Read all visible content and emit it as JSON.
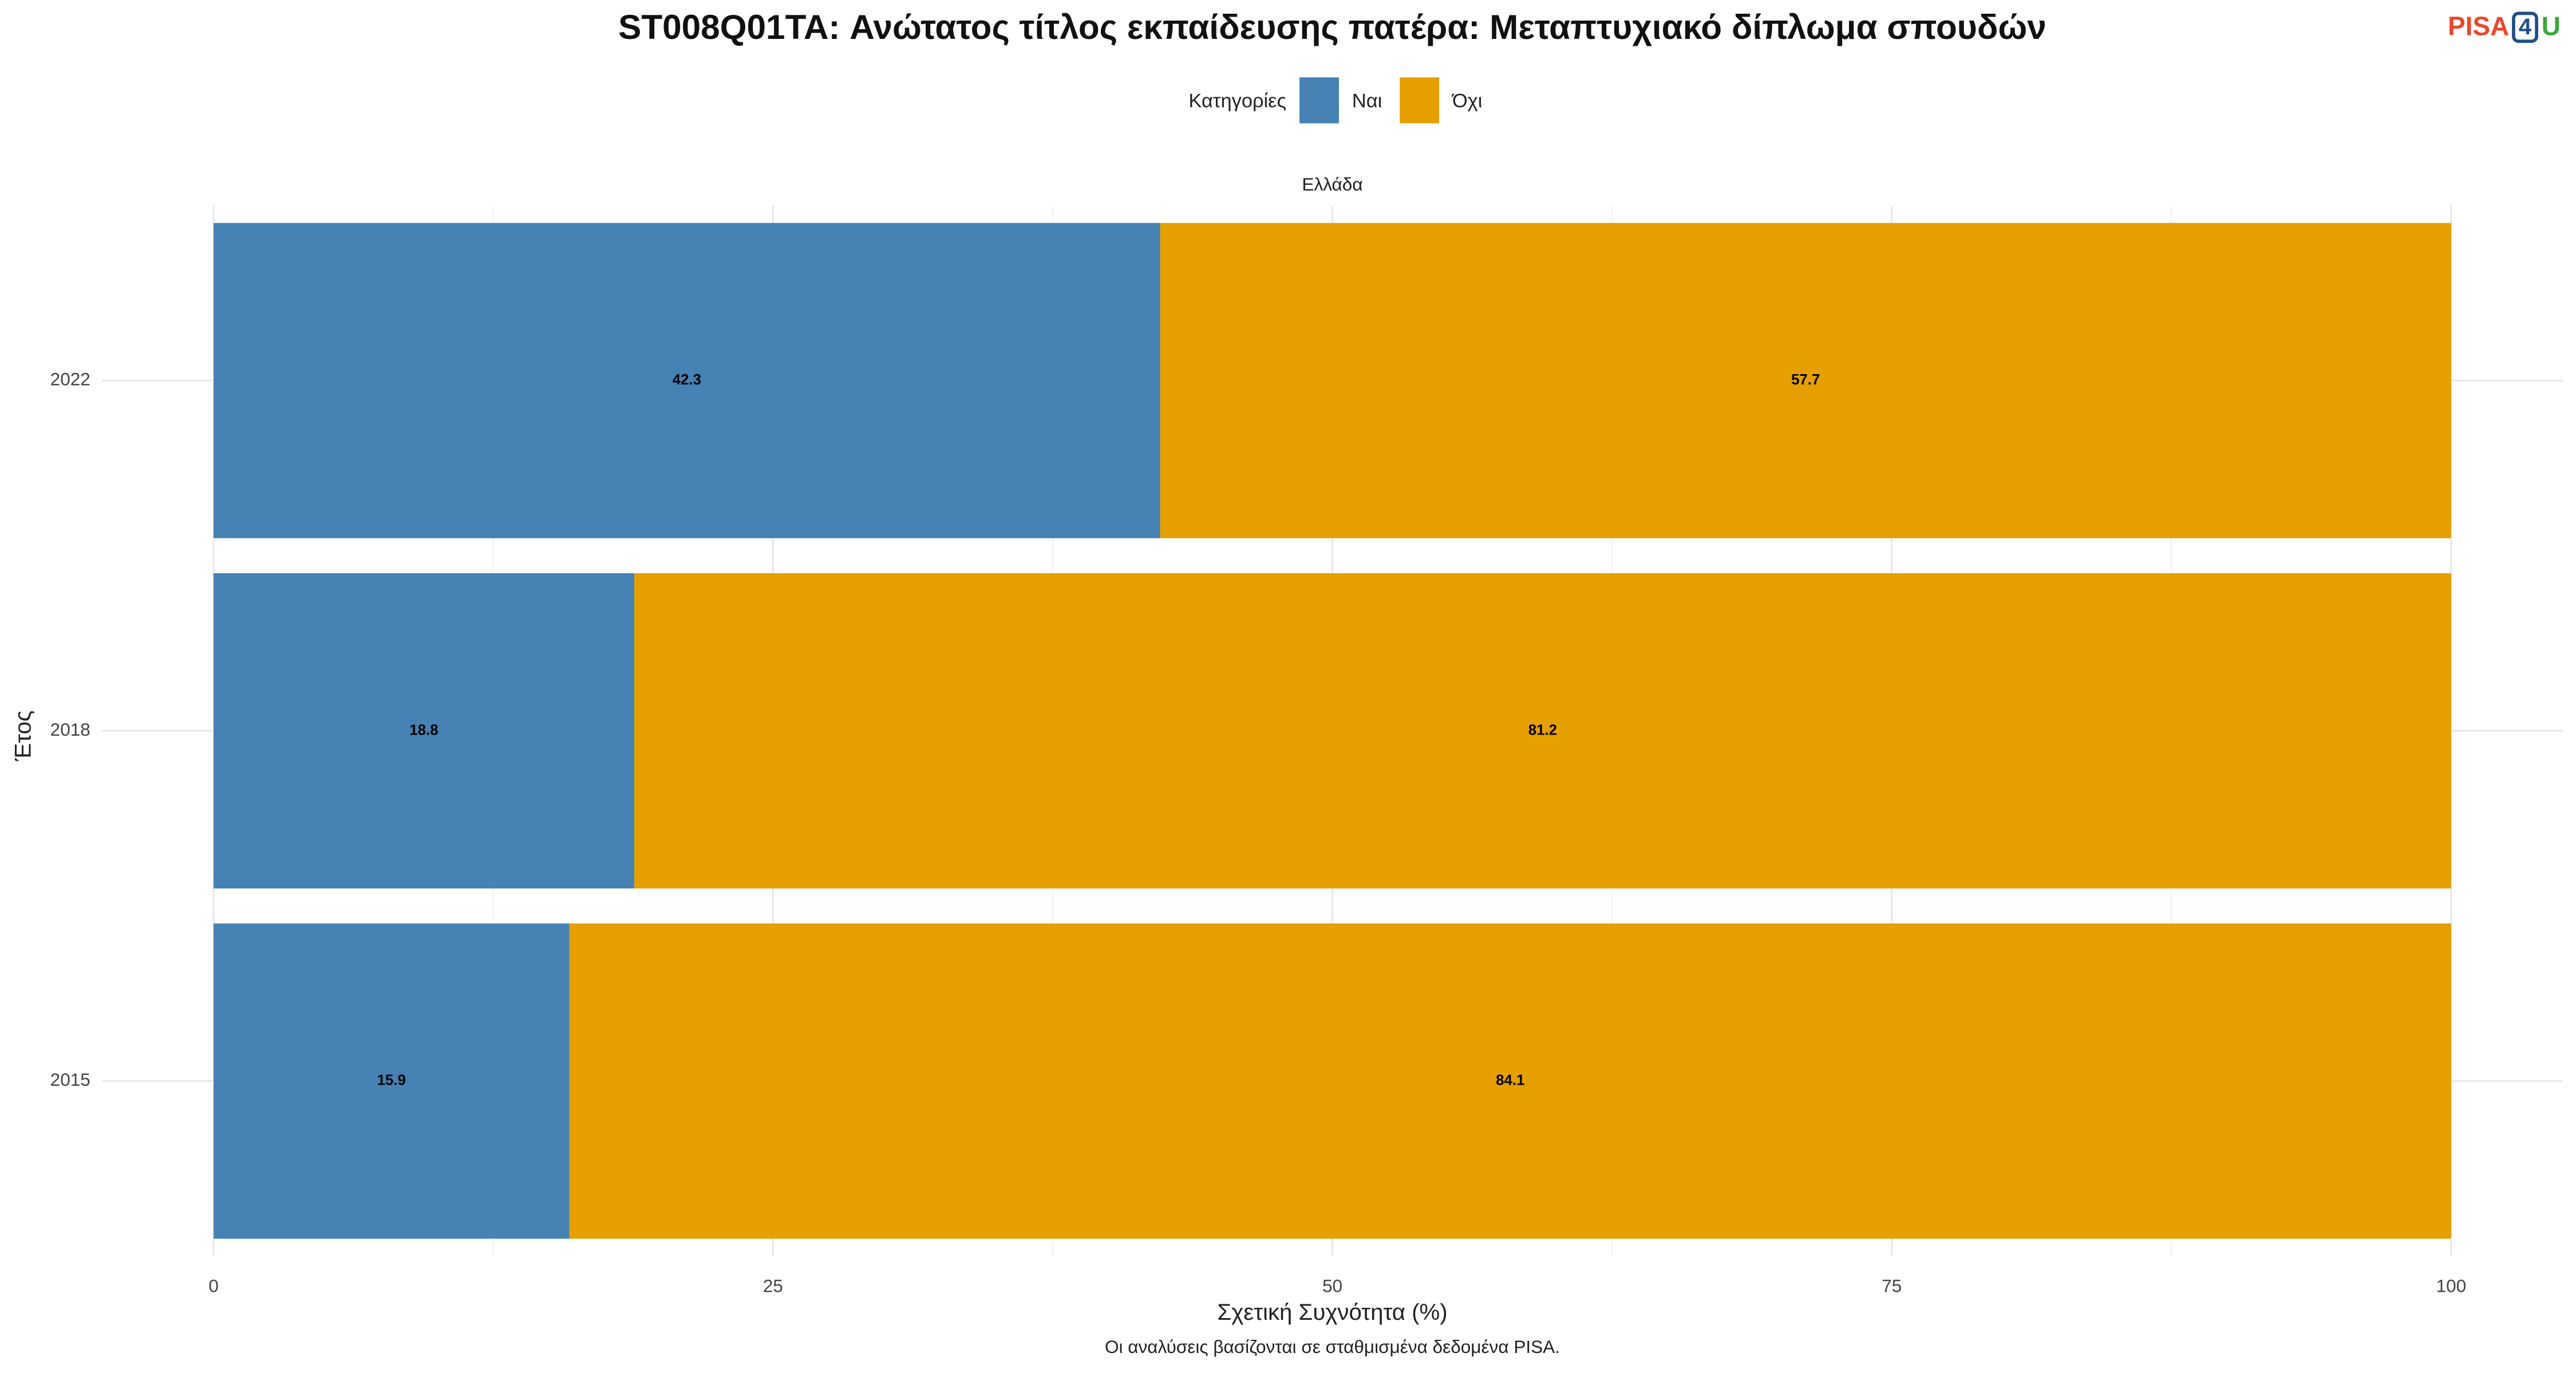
{
  "chart_data": {
    "type": "stacked_barh",
    "title": "ST008Q01TA: Ανώτατος τίτλος εκπαίδευσης πατέρα: Μεταπτυχιακό δίπλωμα σπουδών",
    "legend_title": "Κατηγορίες",
    "facet": "Ελλάδα",
    "categories": [
      "2015",
      "2018",
      "2022"
    ],
    "series": [
      {
        "name": "Ναι",
        "color": "#4682b4",
        "values": [
          15.9,
          18.8,
          42.3
        ]
      },
      {
        "name": "Όχι",
        "color": "#e5a000",
        "values": [
          84.1,
          81.2,
          57.7
        ]
      }
    ],
    "xlim": [
      0,
      100
    ],
    "xticks": [
      0,
      25,
      50,
      75,
      100
    ],
    "xlabel": "Σχετική Συχνότητα (%)",
    "ylabel": "Έτος",
    "caption": "Οι αναλύσεις βασίζονται σε σταθμισμένα δεδομένα PISA.",
    "logo": [
      "PISA",
      "4",
      "U"
    ],
    "grid": true,
    "legend_position": "top"
  }
}
